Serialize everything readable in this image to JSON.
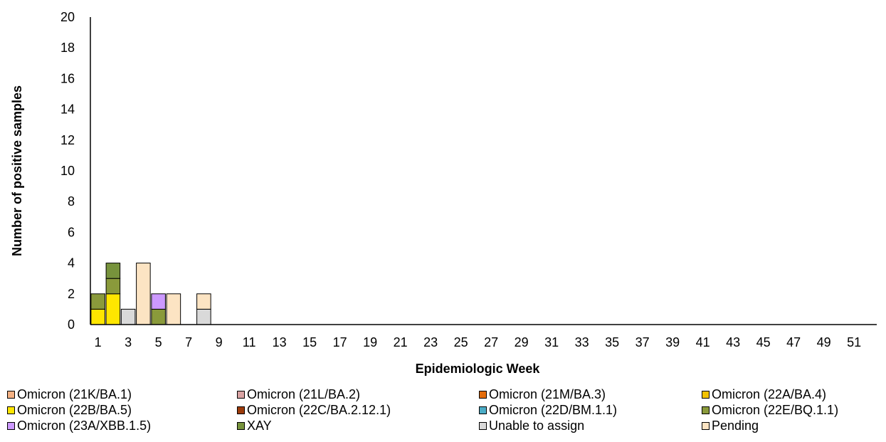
{
  "chart_data": {
    "type": "bar",
    "stacked": true,
    "title": "",
    "xlabel": "Epidemiologic Week",
    "ylabel": "Number of positive samples",
    "ylim": [
      0,
      20
    ],
    "yticks": [
      0,
      2,
      4,
      6,
      8,
      10,
      12,
      14,
      16,
      18,
      20
    ],
    "x_categories": [
      1,
      2,
      3,
      4,
      5,
      6,
      7,
      8,
      9,
      10,
      11,
      12,
      13,
      14,
      15,
      16,
      17,
      18,
      19,
      20,
      21,
      22,
      23,
      24,
      25,
      26,
      27,
      28,
      29,
      30,
      31,
      32,
      33,
      34,
      35,
      36,
      37,
      38,
      39,
      40,
      41,
      42,
      43,
      44,
      45,
      46,
      47,
      48,
      49,
      50,
      51,
      52
    ],
    "x_tick_labels_shown": [
      1,
      3,
      5,
      7,
      9,
      11,
      13,
      15,
      17,
      19,
      21,
      23,
      25,
      27,
      29,
      31,
      33,
      35,
      37,
      39,
      41,
      43,
      45,
      47,
      49,
      51
    ],
    "grid": false,
    "legend_position": "bottom",
    "series": [
      {
        "name": "Omicron (21K/BA.1)",
        "color": "#F4B183",
        "points": []
      },
      {
        "name": "Omicron (21L/BA.2)",
        "color": "#D9A3A3",
        "points": []
      },
      {
        "name": "Omicron (21M/BA.3)",
        "color": "#E46C0A",
        "points": []
      },
      {
        "name": "Omicron (22A/BA.4)",
        "color": "#F2C200",
        "points": []
      },
      {
        "name": "Omicron (22B/BA.5)",
        "color": "#FFE600",
        "points": [
          {
            "week": 1,
            "value": 1
          },
          {
            "week": 2,
            "value": 2
          }
        ]
      },
      {
        "name": "Omicron (22C/BA.2.12.1)",
        "color": "#9C3B0A",
        "points": []
      },
      {
        "name": "Omicron (22D/BM.1.1)",
        "color": "#4BACC6",
        "points": []
      },
      {
        "name": "Omicron (22E/BQ.1.1)",
        "color": "#8A9A3B",
        "points": [
          {
            "week": 1,
            "value": 1
          },
          {
            "week": 2,
            "value": 1
          },
          {
            "week": 5,
            "value": 1
          }
        ]
      },
      {
        "name": "Omicron (23A/XBB.1.5)",
        "color": "#CC99FF",
        "points": [
          {
            "week": 5,
            "value": 1
          }
        ]
      },
      {
        "name": "XAY",
        "color": "#77933C",
        "points": [
          {
            "week": 2,
            "value": 1
          }
        ]
      },
      {
        "name": "Unable to assign",
        "color": "#D9D9D9",
        "points": [
          {
            "week": 3,
            "value": 1
          },
          {
            "week": 8,
            "value": 1
          }
        ]
      },
      {
        "name": "Pending",
        "color": "#FCE4C3",
        "points": [
          {
            "week": 4,
            "value": 4
          },
          {
            "week": 6,
            "value": 2
          },
          {
            "week": 8,
            "value": 1
          }
        ]
      }
    ]
  }
}
